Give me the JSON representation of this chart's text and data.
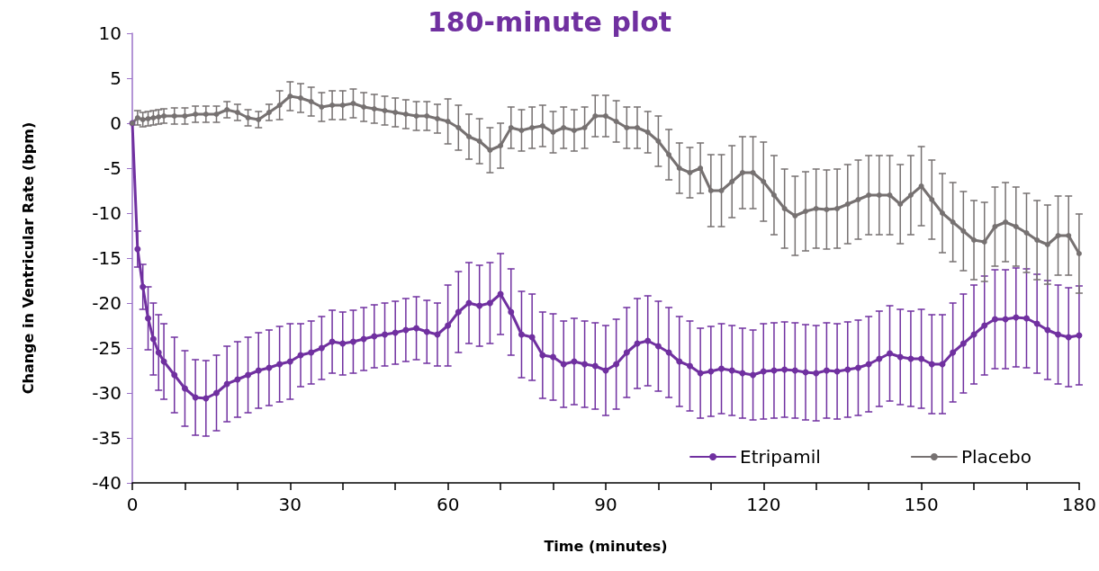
{
  "chart_data": {
    "type": "line",
    "title": "180-minute plot",
    "xlabel": "Time (minutes)",
    "ylabel": "Change in Ventricular Rate (bpm)",
    "x": [
      0,
      1,
      2,
      3,
      4,
      5,
      6,
      8,
      10,
      12,
      14,
      16,
      18,
      20,
      22,
      24,
      26,
      28,
      30,
      32,
      34,
      36,
      38,
      40,
      42,
      44,
      46,
      48,
      50,
      52,
      54,
      56,
      58,
      60,
      62,
      64,
      66,
      68,
      70,
      72,
      74,
      76,
      78,
      80,
      82,
      84,
      86,
      88,
      90,
      92,
      94,
      96,
      98,
      100,
      102,
      104,
      106,
      108,
      110,
      112,
      114,
      116,
      118,
      120,
      122,
      124,
      126,
      128,
      130,
      132,
      134,
      136,
      138,
      140,
      142,
      144,
      146,
      148,
      150,
      152,
      154,
      156,
      158,
      160,
      162,
      164,
      166,
      168,
      170,
      172,
      174,
      176,
      178,
      180
    ],
    "series": [
      {
        "name": "Etripamil",
        "color": "#7030a0",
        "values": [
          0,
          -14,
          -18.2,
          -21.7,
          -24,
          -25.5,
          -26.5,
          -28,
          -29.5,
          -30.5,
          -30.6,
          -30,
          -29,
          -28.5,
          -28,
          -27.5,
          -27.2,
          -26.8,
          -26.5,
          -25.8,
          -25.5,
          -25,
          -24.3,
          -24.5,
          -24.3,
          -24,
          -23.7,
          -23.5,
          -23.3,
          -23,
          -22.8,
          -23.2,
          -23.5,
          -22.5,
          -21,
          -20,
          -20.3,
          -20,
          -19,
          -21,
          -23.5,
          -23.8,
          -25.8,
          -26,
          -26.8,
          -26.5,
          -26.8,
          -27,
          -27.5,
          -26.8,
          -25.5,
          -24.5,
          -24.2,
          -24.8,
          -25.5,
          -26.5,
          -27,
          -27.8,
          -27.6,
          -27.3,
          -27.5,
          -27.8,
          -28,
          -27.6,
          -27.5,
          -27.4,
          -27.5,
          -27.7,
          -27.8,
          -27.5,
          -27.6,
          -27.4,
          -27.2,
          -26.8,
          -26.2,
          -25.6,
          -26,
          -26.2,
          -26.2,
          -26.8,
          -26.8,
          -25.5,
          -24.5,
          -23.5,
          -22.5,
          -21.8,
          -21.8,
          -21.6,
          -21.7,
          -22.3,
          -23,
          -23.5,
          -23.8,
          -23.6
        ],
        "errors": [
          null,
          2,
          2.5,
          3.5,
          4,
          4.2,
          4.2,
          4.2,
          4.2,
          4.2,
          4.2,
          4.2,
          4.2,
          4.2,
          4.2,
          4.2,
          4.2,
          4.2,
          4.2,
          3.5,
          3.5,
          3.5,
          3.5,
          3.5,
          3.5,
          3.5,
          3.5,
          3.5,
          3.5,
          3.5,
          3.5,
          3.5,
          3.5,
          4.5,
          4.5,
          4.5,
          4.5,
          4.5,
          4.5,
          4.8,
          4.8,
          4.8,
          4.8,
          4.8,
          4.8,
          4.8,
          4.8,
          4.8,
          5,
          5,
          5,
          5,
          5,
          5,
          5,
          5,
          5,
          5,
          5,
          5,
          5,
          5,
          5,
          5.3,
          5.3,
          5.3,
          5.3,
          5.3,
          5.3,
          5.3,
          5.3,
          5.3,
          5.3,
          5.3,
          5.3,
          5.3,
          5.3,
          5.3,
          5.5,
          5.5,
          5.5,
          5.5,
          5.5,
          5.5,
          5.5,
          5.5,
          5.5,
          5.5,
          5.5,
          5.5,
          5.5,
          5.5,
          5.5,
          5.5
        ]
      },
      {
        "name": "Placebo",
        "color": "#767171",
        "values": [
          0,
          0.6,
          0.4,
          0.5,
          0.6,
          0.7,
          0.8,
          0.8,
          0.8,
          1,
          1,
          1,
          1.5,
          1.2,
          0.6,
          0.4,
          1.2,
          2,
          3,
          2.8,
          2.4,
          1.8,
          2,
          2,
          2.2,
          1.8,
          1.6,
          1.4,
          1.2,
          1,
          0.8,
          0.8,
          0.5,
          0.2,
          -0.5,
          -1.5,
          -2,
          -3,
          -2.5,
          -0.5,
          -0.8,
          -0.5,
          -0.3,
          -1,
          -0.5,
          -0.8,
          -0.5,
          0.8,
          0.8,
          0.2,
          -0.5,
          -0.5,
          -1,
          -2,
          -3.5,
          -5,
          -5.5,
          -5,
          -7.5,
          -7.5,
          -6.5,
          -5.5,
          -5.5,
          -6.5,
          -8,
          -9.5,
          -10.3,
          -9.8,
          -9.5,
          -9.6,
          -9.5,
          -9,
          -8.5,
          -8,
          -8,
          -8,
          -9,
          -8,
          -7,
          -8.5,
          -10,
          -11,
          -12,
          -13,
          -13.2,
          -11.5,
          -11,
          -11.5,
          -12.2,
          -13,
          -13.5,
          -12.5,
          -12.5,
          -14.5
        ],
        "errors": [
          null,
          0.8,
          0.8,
          0.8,
          0.8,
          0.8,
          0.8,
          0.9,
          0.9,
          0.9,
          0.9,
          0.9,
          0.9,
          0.9,
          0.9,
          0.9,
          0.9,
          1.6,
          1.6,
          1.6,
          1.6,
          1.6,
          1.6,
          1.6,
          1.6,
          1.6,
          1.6,
          1.6,
          1.6,
          1.6,
          1.6,
          1.6,
          1.6,
          2.5,
          2.5,
          2.5,
          2.5,
          2.5,
          2.5,
          2.3,
          2.3,
          2.3,
          2.3,
          2.3,
          2.3,
          2.3,
          2.3,
          2.3,
          2.3,
          2.3,
          2.3,
          2.3,
          2.3,
          2.8,
          2.8,
          2.8,
          2.8,
          2.8,
          4,
          4,
          4,
          4,
          4,
          4.4,
          4.4,
          4.4,
          4.4,
          4.4,
          4.4,
          4.4,
          4.4,
          4.4,
          4.4,
          4.4,
          4.4,
          4.4,
          4.4,
          4.4,
          4.4,
          4.4,
          4.4,
          4.4,
          4.4,
          4.4,
          4.4,
          4.4,
          4.4,
          4.4,
          4.4,
          4.4,
          4.4,
          4.4,
          4.4,
          4.4
        ]
      }
    ],
    "xlim": [
      0,
      180
    ],
    "xticks": [
      0,
      {
        "value": 10,
        "label": null
      },
      {
        "value": 20,
        "label": null
      },
      30,
      {
        "value": 40,
        "label": null
      },
      {
        "value": 50,
        "label": null
      },
      60,
      {
        "value": 70,
        "label": null
      },
      {
        "value": 80,
        "label": null
      },
      90,
      {
        "value": 100,
        "label": null
      },
      {
        "value": 110,
        "label": null
      },
      120,
      {
        "value": 130,
        "label": null
      },
      {
        "value": 140,
        "label": null
      },
      150,
      {
        "value": 160,
        "label": null
      },
      {
        "value": 170,
        "label": null
      },
      180
    ],
    "ylim": [
      -40,
      10
    ],
    "yticks": [
      -40,
      -35,
      -30,
      -25,
      -20,
      -15,
      -10,
      -5,
      0,
      5,
      10
    ],
    "grid": false,
    "legend": "bottom right",
    "marker": "circle",
    "line_style": "solid"
  }
}
